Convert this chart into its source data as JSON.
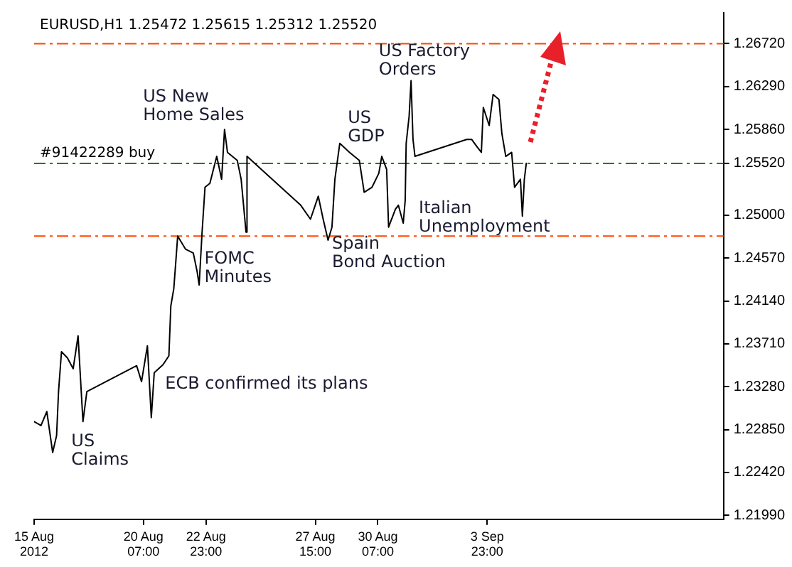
{
  "chart_data": {
    "type": "line",
    "title": "EURUSD,H1 1.25472 1.25615 1.25312 1.25520",
    "x": [
      "2012-08-15T15:00",
      "2012-08-15T22:00",
      "2012-08-16T04:00",
      "2012-08-16T10:00",
      "2012-08-16T14:00",
      "2012-08-16T16:00",
      "2012-08-16T19:00",
      "2012-08-17T01:00",
      "2012-08-17T07:00",
      "2012-08-17T12:00",
      "2012-08-17T17:00",
      "2012-08-17T21:00",
      "2012-08-20T00:00",
      "2012-08-20T05:00",
      "2012-08-20T11:00",
      "2012-08-20T15:00",
      "2012-08-20T18:00",
      "2012-08-21T03:00",
      "2012-08-21T09:00",
      "2012-08-21T11:00",
      "2012-08-21T14:00",
      "2012-08-21T16:00",
      "2012-08-21T18:00",
      "2012-08-22T02:00",
      "2012-08-22T10:00",
      "2012-08-22T14:00",
      "2012-08-22T16:00",
      "2012-08-22T19:00",
      "2012-08-22T22:00",
      "2012-08-23T03:00",
      "2012-08-23T10:00",
      "2012-08-23T15:00",
      "2012-08-23T18:00",
      "2012-08-23T21:00",
      "2012-08-24T07:00",
      "2012-08-24T11:00",
      "2012-08-24T16:00",
      "2012-08-24T17:00",
      "2012-08-27T00:00",
      "2012-08-27T10:00",
      "2012-08-27T18:00",
      "2012-08-27T23:00",
      "2012-08-28T04:00",
      "2012-08-28T08:00",
      "2012-08-28T11:00",
      "2012-08-28T16:00",
      "2012-08-29T02:00",
      "2012-08-29T12:00",
      "2012-08-29T17:00",
      "2012-08-30T01:00",
      "2012-08-30T08:00",
      "2012-08-30T11:00",
      "2012-08-30T16:00",
      "2012-08-30T18:00",
      "2012-08-31T01:00",
      "2012-08-31T04:00",
      "2012-08-31T09:00",
      "2012-08-31T11:00",
      "2012-08-31T12:00",
      "2012-08-31T15:00",
      "2012-08-31T17:00",
      "2012-08-31T19:00",
      "2012-08-31T21:00",
      "2012-09-03T02:00",
      "2012-09-03T07:00",
      "2012-09-03T13:00",
      "2012-09-03T17:00",
      "2012-09-03T19:00",
      "2012-09-04T01:00",
      "2012-09-04T05:00",
      "2012-09-04T11:00",
      "2012-09-04T14:00",
      "2012-09-04T18:00",
      "2012-09-05T00:00",
      "2012-09-05T03:00",
      "2012-09-05T09:00",
      "2012-09-05T11:00",
      "2012-09-05T13:00",
      "2012-09-05T15:00"
    ],
    "series": [
      {
        "color": "#000000",
        "values": [
          1.2293,
          1.2289,
          1.2303,
          1.2262,
          1.2279,
          1.2323,
          1.2363,
          1.2357,
          1.2346,
          1.2379,
          1.2293,
          1.2323,
          1.2349,
          1.2333,
          1.2369,
          1.2297,
          1.2342,
          1.235,
          1.2359,
          1.2409,
          1.2426,
          1.2452,
          1.2479,
          1.2466,
          1.2462,
          1.2443,
          1.243,
          1.2483,
          1.2528,
          1.2532,
          1.2559,
          1.2536,
          1.2586,
          1.2563,
          1.2555,
          1.2536,
          1.2483,
          1.2559,
          1.251,
          1.2496,
          1.2519,
          1.2496,
          1.2475,
          1.2488,
          1.2536,
          1.2572,
          1.2563,
          1.2555,
          1.2523,
          1.2528,
          1.2542,
          1.2559,
          1.2546,
          1.2488,
          1.2506,
          1.251,
          1.2492,
          1.2515,
          1.2572,
          1.2599,
          1.2635,
          1.2576,
          1.2559,
          1.2576,
          1.2576,
          1.2568,
          1.2563,
          1.2608,
          1.259,
          1.2621,
          1.2616,
          1.2582,
          1.2559,
          1.2563,
          1.2528,
          1.2536,
          1.2499,
          1.2536,
          1.2552
        ]
      }
    ],
    "xlim": [
      "2012-08-15T15:00",
      "2012-09-14T01:00"
    ],
    "xticks": [
      {
        "value": "2012-08-15T15:00",
        "label": "15 Aug 2012"
      },
      {
        "value": "2012-08-20T07:00",
        "label": "20 Aug 07:00"
      },
      {
        "value": "2012-08-22T23:00",
        "label": "22 Aug 23:00"
      },
      {
        "value": "2012-08-27T15:00",
        "label": "27 Aug 15:00"
      },
      {
        "value": "2012-08-30T07:00",
        "label": "30 Aug 07:00"
      },
      {
        "value": "2012-09-03T23:00",
        "label": "3 Sep 23:00"
      }
    ],
    "ylim": [
      1.2195,
      1.2703
    ],
    "yticks": [
      {
        "value": 1.2672,
        "label": "1.26720"
      },
      {
        "value": 1.2629,
        "label": "1.26290"
      },
      {
        "value": 1.2586,
        "label": "1.25860"
      },
      {
        "value": 1.2552,
        "label": "1.25520"
      },
      {
        "value": 1.25,
        "label": "1.25000"
      },
      {
        "value": 1.2457,
        "label": "1.24570"
      },
      {
        "value": 1.2414,
        "label": "1.24140"
      },
      {
        "value": 1.2371,
        "label": "1.23710"
      },
      {
        "value": 1.2328,
        "label": "1.23280"
      },
      {
        "value": 1.2285,
        "label": "1.22850"
      },
      {
        "value": 1.2242,
        "label": "1.22420"
      },
      {
        "value": 1.2199,
        "label": "1.21990"
      }
    ],
    "ref_lines": [
      {
        "axis": "y",
        "value": 1.2672,
        "color": "#ff4500",
        "line_style": "dashed"
      },
      {
        "axis": "y",
        "value": 1.2552,
        "label": "#91422289 buy",
        "color": "#008000",
        "line_style": "dashed"
      },
      {
        "axis": "y",
        "value": 1.2479,
        "color": "#ff4500",
        "line_style": "dashed"
      }
    ],
    "annotations": [
      "US New\nHome Sales",
      "US\nGDP",
      "US Factory\nOrders",
      "FOMC\nMinutes",
      "Spain\nBond Auction",
      "Italian\nUnemployment",
      "ECB confirmed its plans",
      "US\nClaims"
    ],
    "grid": false,
    "legend": false
  }
}
